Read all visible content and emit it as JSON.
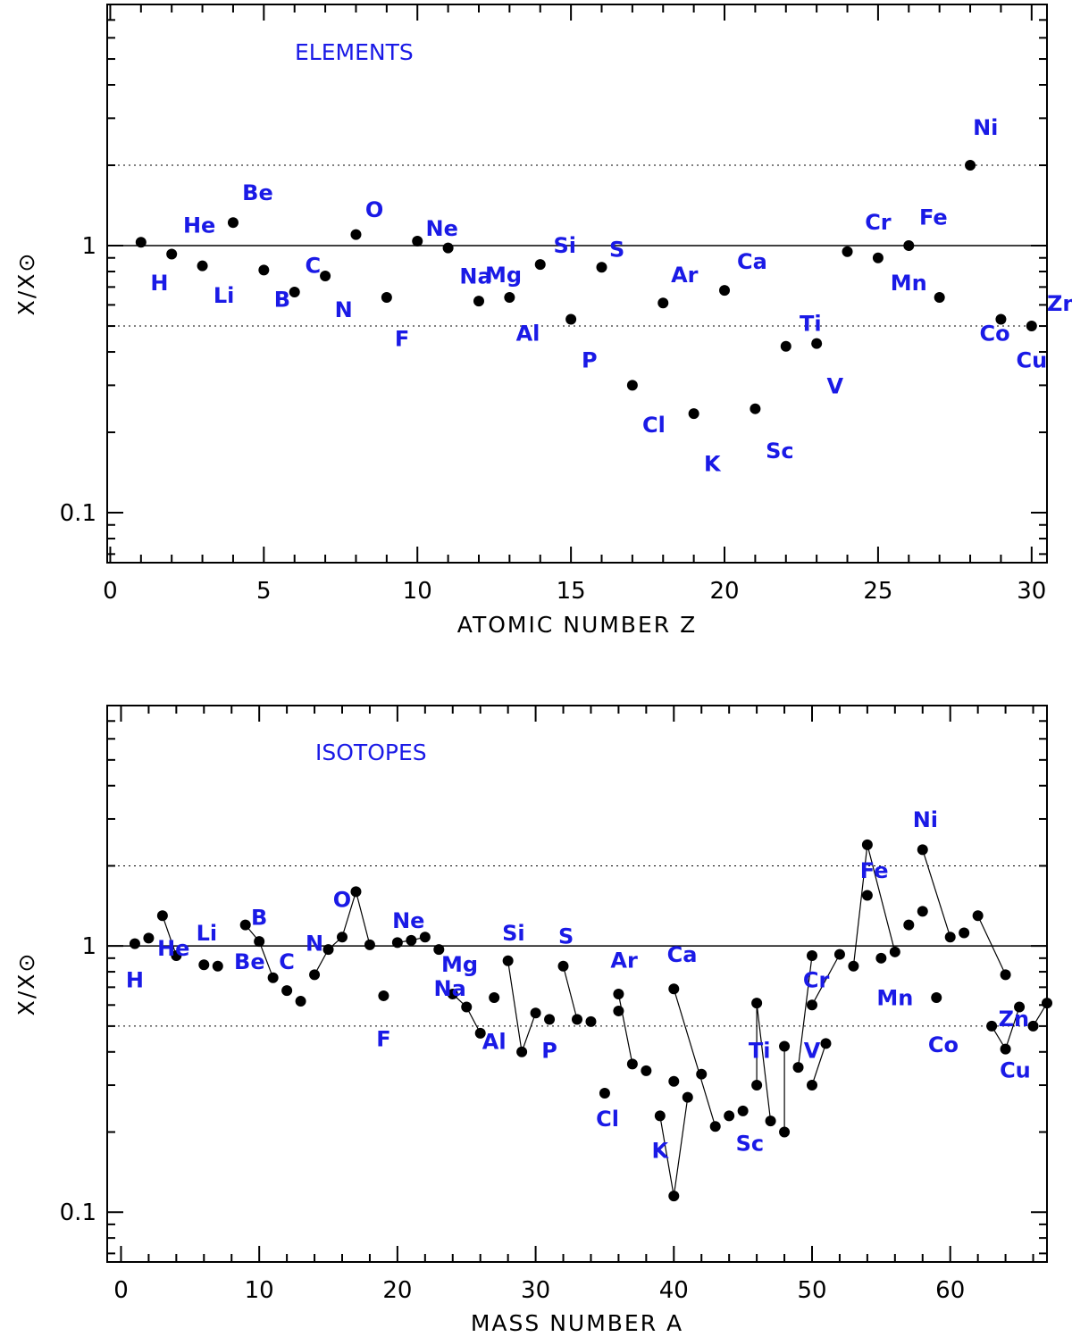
{
  "chart_data": [
    {
      "type": "scatter",
      "title": "ELEMENTS",
      "xlabel": "ATOMIC NUMBER Z",
      "ylabel": "X/X⊙",
      "xlim": [
        -0.1,
        30.5
      ],
      "ylim": [
        0.065,
        8
      ],
      "yscale": "log",
      "xticks": [
        0,
        5,
        10,
        15,
        20,
        25,
        30
      ],
      "yticks": [
        0.1,
        1
      ],
      "ref_lines": {
        "solid": [
          1
        ],
        "dotted": [
          0.5,
          2
        ]
      },
      "x": [
        1,
        2,
        3,
        4,
        5,
        6,
        7,
        8,
        9,
        10,
        11,
        12,
        13,
        14,
        15,
        16,
        17,
        18,
        19,
        20,
        21,
        22,
        23,
        24,
        25,
        26,
        27,
        28,
        29,
        30
      ],
      "values": [
        1.03,
        0.93,
        0.84,
        1.22,
        0.81,
        0.67,
        0.77,
        1.1,
        0.64,
        1.04,
        0.98,
        0.62,
        0.64,
        0.85,
        0.53,
        0.83,
        0.3,
        0.61,
        0.235,
        0.68,
        0.245,
        0.42,
        0.43,
        0.95,
        0.9,
        1.0,
        0.64,
        2.0,
        0.53,
        0.5
      ],
      "labels": [
        {
          "text": "H",
          "x": 1.6,
          "y": 0.68
        },
        {
          "text": "He",
          "x": 2.9,
          "y": 1.12
        },
        {
          "text": "Be",
          "x": 4.8,
          "y": 1.48
        },
        {
          "text": "Li",
          "x": 3.7,
          "y": 0.61
        },
        {
          "text": "B",
          "x": 5.6,
          "y": 0.59
        },
        {
          "text": "C",
          "x": 6.6,
          "y": 0.79
        },
        {
          "text": "N",
          "x": 7.6,
          "y": 0.54
        },
        {
          "text": "O",
          "x": 8.6,
          "y": 1.28
        },
        {
          "text": "F",
          "x": 9.5,
          "y": 0.42
        },
        {
          "text": "Ne",
          "x": 10.8,
          "y": 1.09
        },
        {
          "text": "Na",
          "x": 11.9,
          "y": 0.72
        },
        {
          "text": "Mg",
          "x": 12.8,
          "y": 0.73
        },
        {
          "text": "Si",
          "x": 14.8,
          "y": 0.94
        },
        {
          "text": "S",
          "x": 16.5,
          "y": 0.91
        },
        {
          "text": "Al",
          "x": 13.6,
          "y": 0.44
        },
        {
          "text": "P",
          "x": 15.6,
          "y": 0.35
        },
        {
          "text": "Cl",
          "x": 17.7,
          "y": 0.2
        },
        {
          "text": "K",
          "x": 19.6,
          "y": 0.143
        },
        {
          "text": "Sc",
          "x": 21.8,
          "y": 0.16
        },
        {
          "text": "Ar",
          "x": 18.7,
          "y": 0.73
        },
        {
          "text": "Ca",
          "x": 20.9,
          "y": 0.82
        },
        {
          "text": "Ti",
          "x": 22.8,
          "y": 0.48
        },
        {
          "text": "V",
          "x": 23.6,
          "y": 0.28
        },
        {
          "text": "Cr",
          "x": 25.0,
          "y": 1.15
        },
        {
          "text": "Fe",
          "x": 26.8,
          "y": 1.2
        },
        {
          "text": "Mn",
          "x": 26.0,
          "y": 0.68
        },
        {
          "text": "Ni",
          "x": 28.5,
          "y": 2.6
        },
        {
          "text": "Co",
          "x": 28.8,
          "y": 0.44
        },
        {
          "text": "Cu",
          "x": 30.0,
          "y": 0.35
        },
        {
          "text": "Zn",
          "x": 31.0,
          "y": 0.57
        }
      ]
    },
    {
      "type": "line",
      "title": "ISOTOPES",
      "xlabel": "MASS NUMBER  A",
      "ylabel": "X/X⊙",
      "xlim": [
        -1,
        67
      ],
      "ylim": [
        0.065,
        8
      ],
      "yscale": "log",
      "xticks": [
        0,
        10,
        20,
        30,
        40,
        50,
        60
      ],
      "yticks": [
        0.1,
        1
      ],
      "ref_lines": {
        "solid": [
          1
        ],
        "dotted": [
          0.5,
          2
        ]
      },
      "points": [
        [
          1,
          1.02
        ],
        [
          2,
          1.07
        ],
        [
          3,
          1.3
        ],
        [
          4,
          0.92
        ],
        [
          6,
          0.85
        ],
        [
          7,
          0.84
        ],
        [
          9,
          1.2
        ],
        [
          10,
          1.04
        ],
        [
          11,
          0.76
        ],
        [
          12,
          0.68
        ],
        [
          13,
          0.62
        ],
        [
          14,
          0.78
        ],
        [
          15,
          0.97
        ],
        [
          16,
          1.08
        ],
        [
          17,
          1.6
        ],
        [
          18,
          1.01
        ],
        [
          19,
          0.65
        ],
        [
          20,
          1.03
        ],
        [
          21,
          1.05
        ],
        [
          22,
          1.08
        ],
        [
          23,
          0.97
        ],
        [
          24,
          0.66
        ],
        [
          25,
          0.59
        ],
        [
          26,
          0.47
        ],
        [
          27,
          0.64
        ],
        [
          28,
          0.88
        ],
        [
          29,
          0.4
        ],
        [
          30,
          0.56
        ],
        [
          31,
          0.53
        ],
        [
          32,
          0.84
        ],
        [
          33,
          0.53
        ],
        [
          34,
          0.52
        ],
        [
          35,
          0.28
        ],
        [
          36,
          0.57
        ],
        [
          36,
          0.66
        ],
        [
          37,
          0.36
        ],
        [
          38,
          0.34
        ],
        [
          39,
          0.23
        ],
        [
          40,
          0.115
        ],
        [
          40,
          0.31
        ],
        [
          40,
          0.69
        ],
        [
          41,
          0.27
        ],
        [
          42,
          0.33
        ],
        [
          43,
          0.21
        ],
        [
          44,
          0.23
        ],
        [
          45,
          0.24
        ],
        [
          46,
          0.3
        ],
        [
          46,
          0.61
        ],
        [
          47,
          0.22
        ],
        [
          48,
          0.2
        ],
        [
          48,
          0.42
        ],
        [
          49,
          0.35
        ],
        [
          50,
          0.3
        ],
        [
          50,
          0.6
        ],
        [
          50,
          0.92
        ],
        [
          51,
          0.43
        ],
        [
          52,
          0.93
        ],
        [
          53,
          0.84
        ],
        [
          54,
          1.55
        ],
        [
          54,
          2.4
        ],
        [
          55,
          0.9
        ],
        [
          56,
          0.95
        ],
        [
          57,
          1.2
        ],
        [
          58,
          1.35
        ],
        [
          58,
          2.3
        ],
        [
          59,
          0.64
        ],
        [
          60,
          1.08
        ],
        [
          61,
          1.12
        ],
        [
          62,
          1.3
        ],
        [
          63,
          0.5
        ],
        [
          64,
          0.41
        ],
        [
          64,
          0.78
        ],
        [
          65,
          0.59
        ],
        [
          66,
          0.5
        ],
        [
          67,
          0.61
        ]
      ],
      "segments": [
        [
          [
            3,
            1.3
          ],
          [
            4,
            0.92
          ]
        ],
        [
          [
            9,
            1.2
          ],
          [
            10,
            1.04
          ],
          [
            11,
            0.76
          ]
        ],
        [
          [
            14,
            0.78
          ],
          [
            15,
            0.97
          ],
          [
            16,
            1.08
          ],
          [
            17,
            1.6
          ],
          [
            18,
            1.01
          ]
        ],
        [
          [
            20,
            1.03
          ],
          [
            21,
            1.05
          ],
          [
            22,
            1.08
          ]
        ],
        [
          [
            24,
            0.66
          ],
          [
            25,
            0.59
          ],
          [
            26,
            0.47
          ]
        ],
        [
          [
            28,
            0.88
          ],
          [
            29,
            0.4
          ],
          [
            30,
            0.56
          ]
        ],
        [
          [
            32,
            0.84
          ],
          [
            33,
            0.53
          ]
        ],
        [
          [
            36,
            0.66
          ],
          [
            37,
            0.36
          ]
        ],
        [
          [
            39,
            0.23
          ],
          [
            40,
            0.115
          ],
          [
            41,
            0.27
          ]
        ],
        [
          [
            40,
            0.69
          ],
          [
            43,
            0.21
          ]
        ],
        [
          [
            46,
            0.3
          ],
          [
            46,
            0.61
          ],
          [
            47,
            0.22
          ]
        ],
        [
          [
            48,
            0.2
          ],
          [
            48,
            0.42
          ]
        ],
        [
          [
            49,
            0.35
          ],
          [
            50,
            0.92
          ]
        ],
        [
          [
            50,
            0.3
          ],
          [
            51,
            0.43
          ]
        ],
        [
          [
            50,
            0.6
          ],
          [
            52,
            0.93
          ]
        ],
        [
          [
            53,
            0.84
          ],
          [
            54,
            2.4
          ],
          [
            56,
            0.95
          ]
        ],
        [
          [
            58,
            2.3
          ],
          [
            60,
            1.08
          ]
        ],
        [
          [
            62,
            1.3
          ],
          [
            64,
            0.78
          ]
        ],
        [
          [
            63,
            0.5
          ],
          [
            64,
            0.41
          ]
        ],
        [
          [
            64,
            0.41
          ],
          [
            65,
            0.59
          ]
        ],
        [
          [
            66,
            0.5
          ],
          [
            67,
            0.61
          ]
        ]
      ],
      "labels": [
        {
          "text": "H",
          "x": 1.0,
          "y": 0.7
        },
        {
          "text": "He",
          "x": 3.8,
          "y": 0.92
        },
        {
          "text": "Li",
          "x": 6.2,
          "y": 1.05
        },
        {
          "text": "Be",
          "x": 9.3,
          "y": 0.82
        },
        {
          "text": "B",
          "x": 10.0,
          "y": 1.2
        },
        {
          "text": "C",
          "x": 12.0,
          "y": 0.82
        },
        {
          "text": "N",
          "x": 14.0,
          "y": 0.96
        },
        {
          "text": "O",
          "x": 16.0,
          "y": 1.4
        },
        {
          "text": "F",
          "x": 19.0,
          "y": 0.42
        },
        {
          "text": "Ne",
          "x": 20.8,
          "y": 1.17
        },
        {
          "text": "Mg",
          "x": 24.5,
          "y": 0.8
        },
        {
          "text": "Na",
          "x": 23.8,
          "y": 0.65
        },
        {
          "text": "Si",
          "x": 28.4,
          "y": 1.05
        },
        {
          "text": "S",
          "x": 32.2,
          "y": 1.02
        },
        {
          "text": "Al",
          "x": 27.0,
          "y": 0.41
        },
        {
          "text": "P",
          "x": 31.0,
          "y": 0.38
        },
        {
          "text": "Ar",
          "x": 36.4,
          "y": 0.83
        },
        {
          "text": "Ca",
          "x": 40.6,
          "y": 0.87
        },
        {
          "text": "Cl",
          "x": 35.2,
          "y": 0.21
        },
        {
          "text": "K",
          "x": 39.0,
          "y": 0.16
        },
        {
          "text": "Sc",
          "x": 45.5,
          "y": 0.17
        },
        {
          "text": "Ti",
          "x": 46.2,
          "y": 0.38
        },
        {
          "text": "V",
          "x": 50.0,
          "y": 0.38
        },
        {
          "text": "Cr",
          "x": 50.3,
          "y": 0.7
        },
        {
          "text": "Fe",
          "x": 54.5,
          "y": 1.8
        },
        {
          "text": "Ni",
          "x": 58.2,
          "y": 2.8
        },
        {
          "text": "Mn",
          "x": 56.0,
          "y": 0.6
        },
        {
          "text": "Co",
          "x": 59.5,
          "y": 0.4
        },
        {
          "text": "Cu",
          "x": 64.7,
          "y": 0.32
        },
        {
          "text": "Zn",
          "x": 64.6,
          "y": 0.5
        }
      ]
    }
  ]
}
